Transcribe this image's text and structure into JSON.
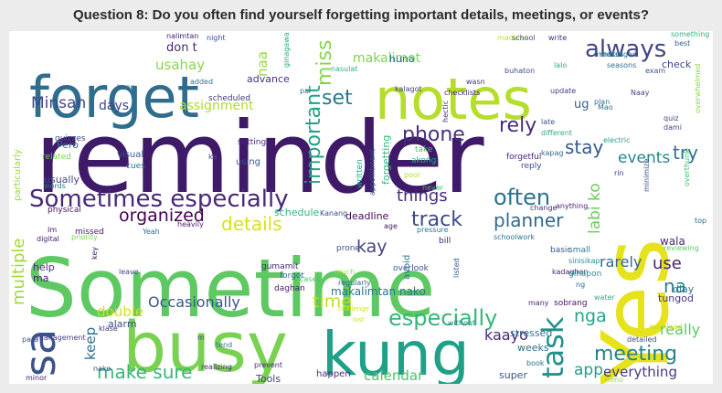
{
  "title": "Question 8: Do you often find yourself forgetting important details, meetings, or events?",
  "chart_data": {
    "type": "wordcloud",
    "words": [
      {
        "text": "reminder",
        "color": "#3e1a68"
      },
      {
        "text": "Sometime",
        "color": "#5ec962"
      },
      {
        "text": "Yes",
        "color": "#e6e21c"
      },
      {
        "text": "busy",
        "color": "#7ad151"
      },
      {
        "text": "kung",
        "color": "#1fa187"
      },
      {
        "text": "forget",
        "color": "#2f6c8e"
      },
      {
        "text": "notes",
        "color": "#b5de2b"
      },
      {
        "text": "sa",
        "color": "#3b528b"
      },
      {
        "text": "Sometimes especially",
        "color": "#482878"
      },
      {
        "text": "always",
        "color": "#414487"
      },
      {
        "text": "often",
        "color": "#2c728e"
      },
      {
        "text": "especially",
        "color": "#35b779"
      },
      {
        "text": "meeting",
        "color": "#26828e"
      },
      {
        "text": "task",
        "color": "#21918c"
      },
      {
        "text": "planner",
        "color": "#31688e"
      },
      {
        "text": "track",
        "color": "#3e4989"
      },
      {
        "text": "rely",
        "color": "#472d7b"
      },
      {
        "text": "phone",
        "color": "#46307e"
      },
      {
        "text": "set",
        "color": "#2a788e"
      },
      {
        "text": "things",
        "color": "#472c7a"
      },
      {
        "text": "important",
        "color": "#20a486"
      },
      {
        "text": "miss",
        "color": "#86d549"
      },
      {
        "text": "details",
        "color": "#d8e219"
      },
      {
        "text": "organized",
        "color": "#440154"
      },
      {
        "text": "stay",
        "color": "#38598c"
      },
      {
        "text": "try",
        "color": "#2d708e"
      },
      {
        "text": "events",
        "color": "#25848e"
      },
      {
        "text": "labi ko",
        "color": "#6ece58"
      },
      {
        "text": "use",
        "color": "#482173"
      },
      {
        "text": "rarely",
        "color": "#31688e"
      },
      {
        "text": "na",
        "color": "#277f8e"
      },
      {
        "text": "nga",
        "color": "#22a785"
      },
      {
        "text": "kay",
        "color": "#414487"
      },
      {
        "text": "time",
        "color": "#c2df23"
      },
      {
        "text": "Occasionally",
        "color": "#39568c"
      },
      {
        "text": "make sure",
        "color": "#35b779"
      },
      {
        "text": "double",
        "color": "#d0e11c"
      },
      {
        "text": "keep",
        "color": "#2e6f8e"
      },
      {
        "text": "really",
        "color": "#5ec962"
      },
      {
        "text": "app",
        "color": "#1f9e89"
      },
      {
        "text": "everything",
        "color": "#443983"
      },
      {
        "text": "calendar",
        "color": "#4ac16d"
      },
      {
        "text": "makalimtan nako",
        "color": "#2d718e"
      },
      {
        "text": "kaayo",
        "color": "#482677"
      },
      {
        "text": "multiple",
        "color": "#a2da37"
      },
      {
        "text": "Minsan",
        "color": "#3f4788"
      },
      {
        "text": "usahay",
        "color": "#8bd646"
      },
      {
        "text": "makalimot",
        "color": "#7fd34e"
      },
      {
        "text": "days",
        "color": "#404688"
      },
      {
        "text": "assignment",
        "color": "#addc30"
      },
      {
        "text": "don t",
        "color": "#482475"
      },
      {
        "text": "naa",
        "color": "#97d83f"
      },
      {
        "text": "ug",
        "color": "#365d8d"
      },
      {
        "text": "huna",
        "color": "#2a778e"
      },
      {
        "text": "check",
        "color": "#3f4889"
      },
      {
        "text": "advance",
        "color": "#472f7d"
      },
      {
        "text": "help",
        "color": "#462f7e"
      },
      {
        "text": "ma",
        "color": "#481d6f"
      },
      {
        "text": "alarm",
        "color": "#3c4f8a"
      },
      {
        "text": "tungod",
        "color": "#453781"
      },
      {
        "text": "wala",
        "color": "#482878"
      },
      {
        "text": "diay",
        "color": "#287c8e"
      },
      {
        "text": "forgetting",
        "color": "#35b779"
      },
      {
        "text": "schedule",
        "color": "#31b57b"
      },
      {
        "text": "deadline",
        "color": "#46085c"
      },
      {
        "text": "Tools",
        "color": "#404588"
      },
      {
        "text": "super",
        "color": "#3a548c"
      },
      {
        "text": "happen",
        "color": "#482979"
      },
      {
        "text": "weeks",
        "color": "#2e6e8e"
      },
      {
        "text": "stressed",
        "color": "#2a788e"
      },
      {
        "text": "scheduled",
        "color": "#453882"
      },
      {
        "text": "setting",
        "color": "#472a7a"
      },
      {
        "text": "using",
        "color": "#3a538b"
      },
      {
        "text": "visual",
        "color": "#375a8c"
      },
      {
        "text": "cues",
        "color": "#2a768e"
      },
      {
        "text": "Pero",
        "color": "#2f6b8e"
      },
      {
        "text": "usually",
        "color": "#3f4889"
      },
      {
        "text": "particularly",
        "color": "#95d840"
      },
      {
        "text": "quizzes",
        "color": "#3d4d8a"
      },
      {
        "text": "related",
        "color": "#78d152"
      },
      {
        "text": "words",
        "color": "#29798e"
      },
      {
        "text": "physical",
        "color": "#471365"
      },
      {
        "text": "missed",
        "color": "#48186a"
      },
      {
        "text": "Yeah",
        "color": "#2d708e"
      },
      {
        "text": "heavily",
        "color": "#481b6d"
      },
      {
        "text": "Kanang",
        "color": "#3d4e8a"
      },
      {
        "text": "prone",
        "color": "#3b528b"
      },
      {
        "text": "forgot",
        "color": "#31688e"
      },
      {
        "text": "cases",
        "color": "#4ac16d"
      },
      {
        "text": "gumamit",
        "color": "#482475"
      },
      {
        "text": "daghan",
        "color": "#481a6c"
      },
      {
        "text": "much",
        "color": "#a8db34"
      },
      {
        "text": "regularly",
        "color": "#355f8d"
      },
      {
        "text": "challenge",
        "color": "#d2e21b"
      },
      {
        "text": "lost",
        "color": "#c8e020"
      },
      {
        "text": "overlook",
        "color": "#3a548c"
      },
      {
        "text": "avoid",
        "color": "#2c728e"
      },
      {
        "text": "listed",
        "color": "#365c8d"
      },
      {
        "text": "bill",
        "color": "#482173"
      },
      {
        "text": "pressure",
        "color": "#2a788e"
      },
      {
        "text": "age",
        "color": "#481467"
      },
      {
        "text": "never",
        "color": "#37b878"
      },
      {
        "text": "written",
        "color": "#1fa088"
      },
      {
        "text": "appointment",
        "color": "#3b528b"
      },
      {
        "text": "take",
        "color": "#4ac16d"
      },
      {
        "text": "akong",
        "color": "#26ad81"
      },
      {
        "text": "poor",
        "color": "#b8de29"
      },
      {
        "text": "forgetful",
        "color": "#482677"
      },
      {
        "text": "reply",
        "color": "#3f4889"
      },
      {
        "text": "kapag",
        "color": "#31688e"
      },
      {
        "text": "change",
        "color": "#472d7b"
      },
      {
        "text": "anything",
        "color": "#482475"
      },
      {
        "text": "schoolwork",
        "color": "#2c738e"
      },
      {
        "text": "basic",
        "color": "#39568c"
      },
      {
        "text": "small",
        "color": "#2a788e"
      },
      {
        "text": "kadaghan",
        "color": "#482173"
      },
      {
        "text": "gihapon",
        "color": "#1f988b"
      },
      {
        "text": "sinisikap",
        "color": "#20928c"
      },
      {
        "text": "sobrang",
        "color": "#471063"
      },
      {
        "text": "water",
        "color": "#2ab07f"
      },
      {
        "text": "workload",
        "color": "#cae11f"
      },
      {
        "text": "reviewing",
        "color": "#5ec962"
      },
      {
        "text": "top",
        "color": "#306a8e"
      },
      {
        "text": "detailed",
        "color": "#3e4989"
      },
      {
        "text": "book",
        "color": "#2d708e"
      },
      {
        "text": "nimo",
        "color": "#93d741"
      },
      {
        "text": "without",
        "color": "#287d8e"
      },
      {
        "text": "many",
        "color": "#481f70"
      },
      {
        "text": "nako",
        "color": "#3e4a89"
      },
      {
        "text": "klase",
        "color": "#453781"
      },
      {
        "text": "tend",
        "color": "#2a768e"
      },
      {
        "text": "realizing",
        "color": "#472e7c"
      },
      {
        "text": "prevent",
        "color": "#482677"
      },
      {
        "text": "minor",
        "color": "#481c6e"
      },
      {
        "text": "management",
        "color": "#433e85"
      },
      {
        "text": "para",
        "color": "#3c4f8a"
      },
      {
        "text": "priority",
        "color": "#7ad151"
      },
      {
        "text": "digital",
        "color": "#48186a"
      },
      {
        "text": "Im",
        "color": "#471164"
      },
      {
        "text": "key",
        "color": "#481668"
      },
      {
        "text": "leave",
        "color": "#404588"
      },
      {
        "text": "m",
        "color": "#3f4788"
      },
      {
        "text": "minutes",
        "color": "#26828e"
      },
      {
        "text": "nalimtan",
        "color": "#482071"
      },
      {
        "text": "night",
        "color": "#3b528b"
      },
      {
        "text": "added",
        "color": "#2c738e"
      },
      {
        "text": "kong",
        "color": "#31688e"
      },
      {
        "text": "ka",
        "color": "#3e4c8a"
      },
      {
        "text": "pa",
        "color": "#2a788e"
      },
      {
        "text": "kalagot",
        "color": "#433d84"
      },
      {
        "text": "checklists",
        "color": "#482475"
      },
      {
        "text": "wasn",
        "color": "#46337f"
      },
      {
        "text": "hectic",
        "color": "#46327e"
      },
      {
        "text": "late",
        "color": "#3a538b"
      },
      {
        "text": "nasulat",
        "color": "#29af7f"
      },
      {
        "text": "ginagawa",
        "color": "#22a884"
      },
      {
        "text": "madalas",
        "color": "#bddf26"
      },
      {
        "text": "school",
        "color": "#3d4e8a"
      },
      {
        "text": "write",
        "color": "#482878"
      },
      {
        "text": "something",
        "color": "#2ab07f"
      },
      {
        "text": "best",
        "color": "#355f8d"
      },
      {
        "text": "messages",
        "color": "#2f6c8e"
      },
      {
        "text": "exam",
        "color": "#3b528b"
      },
      {
        "text": "seasons",
        "color": "#2d708e"
      },
      {
        "text": "buhaton",
        "color": "#3d4e8a"
      },
      {
        "text": "lalo",
        "color": "#26ad81"
      },
      {
        "text": "update",
        "color": "#433d84"
      },
      {
        "text": "plan",
        "color": "#2c728e"
      },
      {
        "text": "Mao",
        "color": "#2d708e"
      },
      {
        "text": "Naay",
        "color": "#404588"
      },
      {
        "text": "overwhelmed",
        "color": "#93d741"
      },
      {
        "text": "quiz",
        "color": "#3f4889"
      },
      {
        "text": "dami",
        "color": "#3e4a89"
      },
      {
        "text": "overthunk",
        "color": "#4ac16d"
      },
      {
        "text": "electric",
        "color": "#20a486"
      },
      {
        "text": "different",
        "color": "#2ab07f"
      },
      {
        "text": "rin",
        "color": "#46327e"
      },
      {
        "text": "minimize",
        "color": "#3b528b"
      },
      {
        "text": "ng",
        "color": "#31688e"
      }
    ]
  }
}
